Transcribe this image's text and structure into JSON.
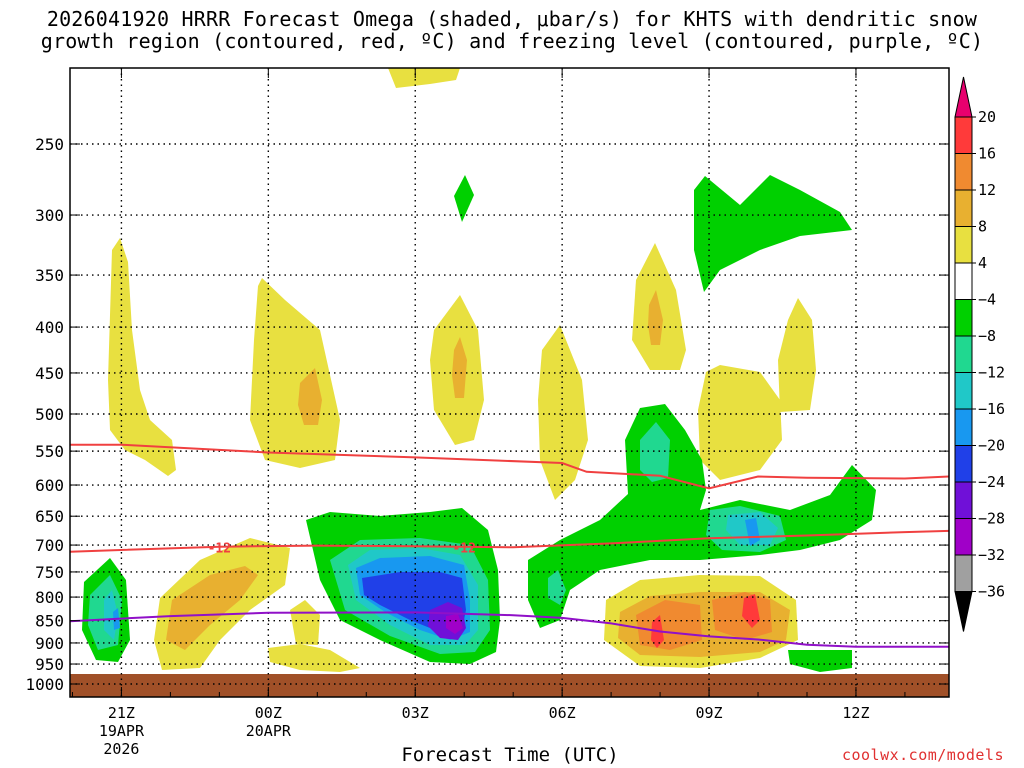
{
  "chart_data": {
    "type": "heatmap",
    "title_line1": "2026041920 HRRR Forecast Omega (shaded, μbar/s) for KHTS with dendritic snow",
    "title_line2": "growth region (contoured, red, ºC) and freezing level (contoured, purple, ºC)",
    "xlabel": "Forecast Time (UTC)",
    "credit": "coolwx.com/models",
    "x_ticks": [
      {
        "hour": 1,
        "label": "21Z",
        "sub1": "19APR",
        "sub2": "2026"
      },
      {
        "hour": 4,
        "label": "00Z",
        "sub1": "20APR",
        "sub2": ""
      },
      {
        "hour": 7,
        "label": "03Z",
        "sub1": "",
        "sub2": ""
      },
      {
        "hour": 10,
        "label": "06Z",
        "sub1": "",
        "sub2": ""
      },
      {
        "hour": 13,
        "label": "09Z",
        "sub1": "",
        "sub2": ""
      },
      {
        "hour": 16,
        "label": "12Z",
        "sub1": "",
        "sub2": ""
      }
    ],
    "y_ticks": [
      "250",
      "300",
      "350",
      "400",
      "450",
      "500",
      "550",
      "600",
      "650",
      "700",
      "750",
      "800",
      "850",
      "900",
      "950",
      "1000"
    ],
    "y_tick_values": [
      250,
      300,
      350,
      400,
      450,
      500,
      550,
      600,
      650,
      700,
      750,
      800,
      850,
      900,
      950,
      1000
    ],
    "xlim": [
      -0.05,
      17.9
    ],
    "ylim_pressure_hPa": [
      200,
      1015
    ],
    "colorbar_labels": [
      "20",
      "16",
      "12",
      "8",
      "4",
      "−4",
      "−8",
      "−12",
      "−16",
      "−20",
      "−24",
      "−28",
      "−32",
      "−36"
    ],
    "colorbar_colors": [
      "#e8006e",
      "#ff3a3a",
      "#f08a30",
      "#e8b030",
      "#e8e040",
      "#ffffff",
      "#00d000",
      "#20d890",
      "#20c8c8",
      "#1898f0",
      "#2040e8",
      "#7010d8",
      "#a000c8",
      "#a0a0a0",
      "#000000"
    ],
    "dgz_contour_label": "-12",
    "dgz_top_hPa": [
      [
        -0.05,
        541
      ],
      [
        1,
        541
      ],
      [
        4,
        552
      ],
      [
        7,
        559
      ],
      [
        10,
        567
      ],
      [
        10.5,
        580
      ],
      [
        12,
        586
      ],
      [
        13,
        605
      ],
      [
        14,
        587
      ],
      [
        15,
        589
      ],
      [
        17,
        590
      ],
      [
        17.9,
        587
      ]
    ],
    "dgz_bottom_hPa": [
      [
        -0.05,
        712
      ],
      [
        3,
        703
      ],
      [
        5,
        701
      ],
      [
        7,
        702
      ],
      [
        9,
        704
      ],
      [
        11,
        697
      ],
      [
        13,
        688
      ],
      [
        15,
        683
      ],
      [
        17,
        677
      ],
      [
        17.9,
        675
      ]
    ],
    "freezing_level_hPa": [
      [
        -0.05,
        851
      ],
      [
        2,
        840
      ],
      [
        4,
        833
      ],
      [
        7,
        832
      ],
      [
        9,
        838
      ],
      [
        10,
        844
      ],
      [
        11,
        856
      ],
      [
        12,
        874
      ],
      [
        13,
        885
      ],
      [
        14,
        892
      ],
      [
        15,
        904
      ],
      [
        16,
        909
      ],
      [
        17.9,
        909
      ]
    ],
    "omega_features": [
      {
        "value_range": "4 to 8",
        "color": "yellow",
        "region": "several bands between 350 and 1000 hPa"
      },
      {
        "value_range": "-4 to -8",
        "color": "green",
        "region": "upward motion 600-950 hPa hours 5-11, and 270-360 hPa near hour 13-15"
      },
      {
        "value_range": "-20 to -24",
        "color": "blue",
        "region": "core near 800-900 hPa around 03Z-04Z"
      },
      {
        "value_range": "-28 to -32",
        "color": "purple",
        "region": "max near 890 hPa around 04Z"
      }
    ]
  }
}
